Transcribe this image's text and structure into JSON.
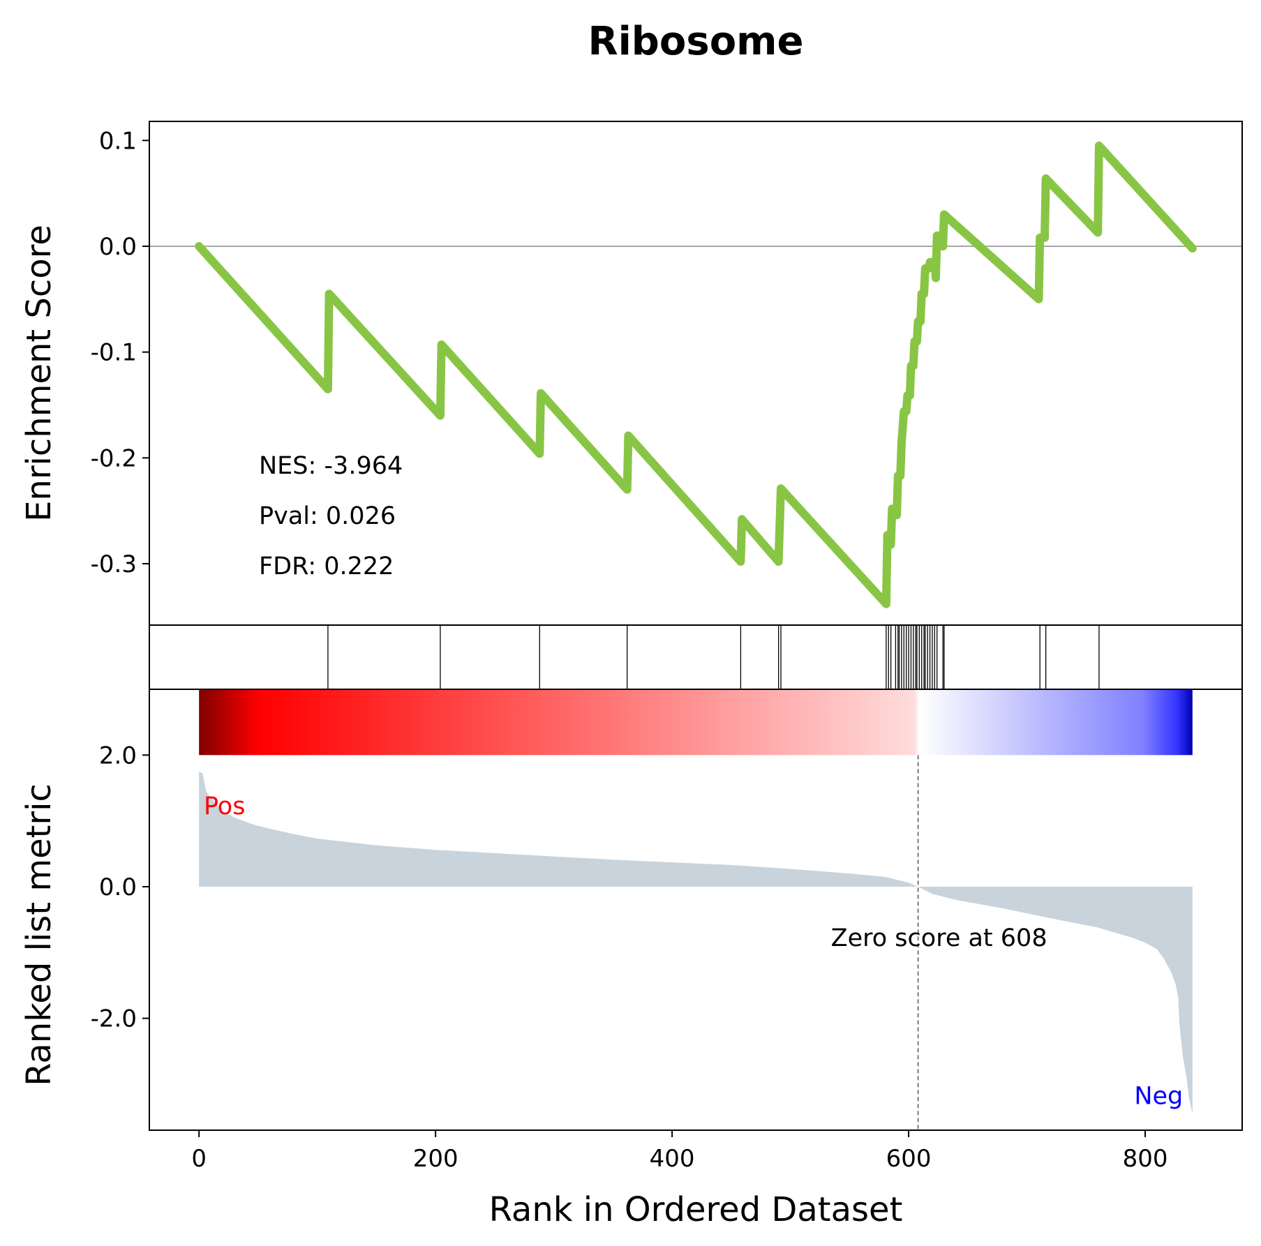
{
  "chart_data": {
    "type": "line",
    "title": "Ribosome",
    "xlabel": "Rank in Ordered Dataset",
    "xlim": [
      -42,
      882
    ],
    "x_ticks": [
      {
        "value": 0,
        "label": "0"
      },
      {
        "value": 200,
        "label": "200"
      },
      {
        "value": 400,
        "label": "400"
      },
      {
        "value": 600,
        "label": "600"
      },
      {
        "value": 800,
        "label": "800"
      }
    ],
    "enrichment": {
      "ylabel": "Enrichment Score",
      "ylim": [
        -0.358,
        0.118
      ],
      "y_ticks": [
        {
          "value": 0.1,
          "label": "0.1"
        },
        {
          "value": 0.0,
          "label": "0.0"
        },
        {
          "value": -0.1,
          "label": "-0.1"
        },
        {
          "value": -0.2,
          "label": "-0.2"
        },
        {
          "value": -0.3,
          "label": "-0.3"
        }
      ],
      "line_color": "#88c544",
      "zero_line": true,
      "stats": {
        "nes": "NES: -3.964",
        "pval": "Pval: 0.026",
        "fdr": "FDR: 0.222"
      },
      "points": [
        [
          0,
          0.0
        ],
        [
          109,
          -0.135
        ],
        [
          110,
          -0.045
        ],
        [
          204,
          -0.16
        ],
        [
          205,
          -0.093
        ],
        [
          288,
          -0.196
        ],
        [
          289,
          -0.139
        ],
        [
          362,
          -0.23
        ],
        [
          363,
          -0.179
        ],
        [
          458,
          -0.298
        ],
        [
          459,
          -0.258
        ],
        [
          490,
          -0.298
        ],
        [
          492,
          -0.229
        ],
        [
          581,
          -0.338
        ],
        [
          582,
          -0.273
        ],
        [
          584,
          -0.273
        ],
        [
          585,
          -0.282
        ],
        [
          586,
          -0.248
        ],
        [
          589,
          -0.248
        ],
        [
          590,
          -0.254
        ],
        [
          591,
          -0.217
        ],
        [
          593,
          -0.217
        ],
        [
          594,
          -0.186
        ],
        [
          596,
          -0.156
        ],
        [
          598,
          -0.156
        ],
        [
          599,
          -0.141
        ],
        [
          601,
          -0.141
        ],
        [
          602,
          -0.113
        ],
        [
          604,
          -0.113
        ],
        [
          605,
          -0.09
        ],
        [
          607,
          -0.09
        ],
        [
          608,
          -0.071
        ],
        [
          610,
          -0.071
        ],
        [
          611,
          -0.045
        ],
        [
          613,
          -0.045
        ],
        [
          614,
          -0.021
        ],
        [
          617,
          -0.021
        ],
        [
          618,
          -0.015
        ],
        [
          622,
          -0.015
        ],
        [
          623,
          -0.03
        ],
        [
          624,
          0.01
        ],
        [
          628,
          0.01
        ],
        [
          629,
          0.0
        ],
        [
          630,
          0.03
        ],
        [
          710,
          -0.05
        ],
        [
          711,
          0.008
        ],
        [
          715,
          0.008
        ],
        [
          716,
          0.064
        ],
        [
          760,
          0.013
        ],
        [
          761,
          0.095
        ],
        [
          840,
          -0.002
        ]
      ]
    },
    "hits": [
      109,
      204,
      288,
      362,
      458,
      490,
      492,
      581,
      583,
      585,
      589,
      591,
      592,
      594,
      596,
      598,
      600,
      602,
      604,
      606,
      607,
      609,
      611,
      613,
      614,
      616,
      618,
      620,
      622,
      624,
      629,
      630,
      711,
      716,
      761
    ],
    "ranked_metric": {
      "ylabel": "Ranked list metric",
      "ylim": [
        -3.7,
        3.0
      ],
      "y_ticks": [
        {
          "value": 2.0,
          "label": "2.0"
        },
        {
          "value": 0.0,
          "label": "0.0"
        },
        {
          "value": -2.0,
          "label": "-2.0"
        }
      ],
      "zero_score_rank": 608,
      "zero_label": "Zero score at 608",
      "pos_label": "Pos",
      "neg_label": "Neg",
      "pos_color": "#ff0000",
      "neg_color": "#0000ff",
      "fill_color": "#c9d3dc",
      "n": 840,
      "profile": [
        [
          0,
          1.75
        ],
        [
          3,
          1.72
        ],
        [
          6,
          1.45
        ],
        [
          10,
          1.35
        ],
        [
          20,
          1.15
        ],
        [
          30,
          1.05
        ],
        [
          45,
          0.95
        ],
        [
          60,
          0.88
        ],
        [
          80,
          0.8
        ],
        [
          100,
          0.73
        ],
        [
          150,
          0.63
        ],
        [
          200,
          0.56
        ],
        [
          250,
          0.51
        ],
        [
          300,
          0.46
        ],
        [
          350,
          0.41
        ],
        [
          400,
          0.37
        ],
        [
          450,
          0.33
        ],
        [
          500,
          0.27
        ],
        [
          550,
          0.2
        ],
        [
          580,
          0.15
        ],
        [
          600,
          0.06
        ],
        [
          608,
          0.0
        ],
        [
          620,
          -0.11
        ],
        [
          640,
          -0.2
        ],
        [
          680,
          -0.33
        ],
        [
          720,
          -0.48
        ],
        [
          760,
          -0.62
        ],
        [
          790,
          -0.78
        ],
        [
          800,
          -0.85
        ],
        [
          810,
          -0.95
        ],
        [
          816,
          -1.1
        ],
        [
          822,
          -1.3
        ],
        [
          826,
          -1.5
        ],
        [
          828,
          -1.7
        ],
        [
          829,
          -2.1
        ],
        [
          832,
          -2.6
        ],
        [
          835,
          -2.9
        ],
        [
          837,
          -3.2
        ],
        [
          840,
          -3.45
        ]
      ],
      "colorbar_stops": [
        [
          0.0,
          "#800000"
        ],
        [
          0.06,
          "#ff0000"
        ],
        [
          0.72,
          "#ffdcdc"
        ],
        [
          0.725,
          "#ffffff"
        ],
        [
          0.95,
          "#8080ff"
        ],
        [
          0.985,
          "#3333ff"
        ],
        [
          1.0,
          "#0000b0"
        ]
      ]
    }
  }
}
